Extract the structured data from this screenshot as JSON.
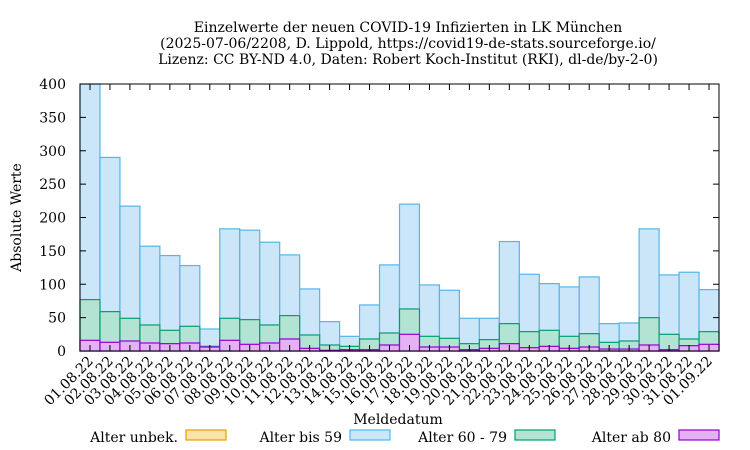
{
  "chart_data": {
    "type": "bar",
    "stacked": false,
    "title": [
      "Einzelwerte der neuen COVID-19 Infizierten in LK München",
      "(2025-07-06/2208, D. Lippold, https://covid19-de-stats.sourceforge.io/",
      "Lizenz: CC BY-ND 4.0, Daten: Robert Koch-Institut (RKI), dl-de/by-2-0)"
    ],
    "xlabel": "Meldedatum",
    "ylabel": "Absolute Werte",
    "ylim": [
      0,
      400
    ],
    "yticks": [
      0,
      50,
      100,
      150,
      200,
      250,
      300,
      350,
      400
    ],
    "grid": false,
    "legend_position": "bottom",
    "categories": [
      "01.08.22",
      "02.08.22",
      "03.08.22",
      "04.08.22",
      "05.08.22",
      "06.08.22",
      "07.08.22",
      "08.08.22",
      "09.08.22",
      "10.08.22",
      "11.08.22",
      "12.08.22",
      "13.08.22",
      "14.08.22",
      "15.08.22",
      "16.08.22",
      "17.08.22",
      "18.08.22",
      "19.08.22",
      "20.08.22",
      "21.08.22",
      "22.08.22",
      "23.08.22",
      "24.08.22",
      "25.08.22",
      "26.08.22",
      "27.08.22",
      "28.08.22",
      "29.08.22",
      "30.08.22",
      "31.08.22",
      "01.09.22"
    ],
    "series": [
      {
        "name": "Alter unbek.",
        "fill": "#fde2a8",
        "stroke": "#e69f00",
        "values": [
          0,
          0,
          0,
          0,
          0,
          0,
          0,
          0,
          0,
          0,
          0,
          0,
          0,
          0,
          0,
          0,
          0,
          0,
          0,
          0,
          0,
          0,
          0,
          0,
          0,
          0,
          0,
          0,
          0,
          0,
          0,
          0
        ]
      },
      {
        "name": "Alter bis 59",
        "fill": "#cce6f9",
        "stroke": "#56b4e9",
        "values": [
          400,
          290,
          217,
          157,
          143,
          128,
          33,
          183,
          181,
          163,
          144,
          93,
          44,
          22,
          69,
          129,
          220,
          99,
          91,
          49,
          49,
          164,
          115,
          101,
          96,
          111,
          41,
          42,
          183,
          114,
          118,
          92
        ]
      },
      {
        "name": "Alter 60 - 79",
        "fill": "#b3e3d2",
        "stroke": "#009e73",
        "values": [
          77,
          59,
          49,
          39,
          31,
          37,
          7,
          49,
          47,
          39,
          53,
          24,
          9,
          7,
          18,
          27,
          63,
          22,
          19,
          11,
          17,
          41,
          29,
          31,
          22,
          26,
          13,
          15,
          50,
          25,
          18,
          29
        ]
      },
      {
        "name": "Alter ab 80",
        "fill": "#e3b1f4",
        "stroke": "#9400d3",
        "values": [
          16,
          13,
          15,
          12,
          11,
          12,
          6,
          16,
          10,
          12,
          18,
          4,
          1,
          2,
          2,
          9,
          25,
          6,
          6,
          2,
          4,
          11,
          5,
          7,
          4,
          6,
          3,
          3,
          9,
          2,
          8,
          10
        ]
      }
    ]
  }
}
